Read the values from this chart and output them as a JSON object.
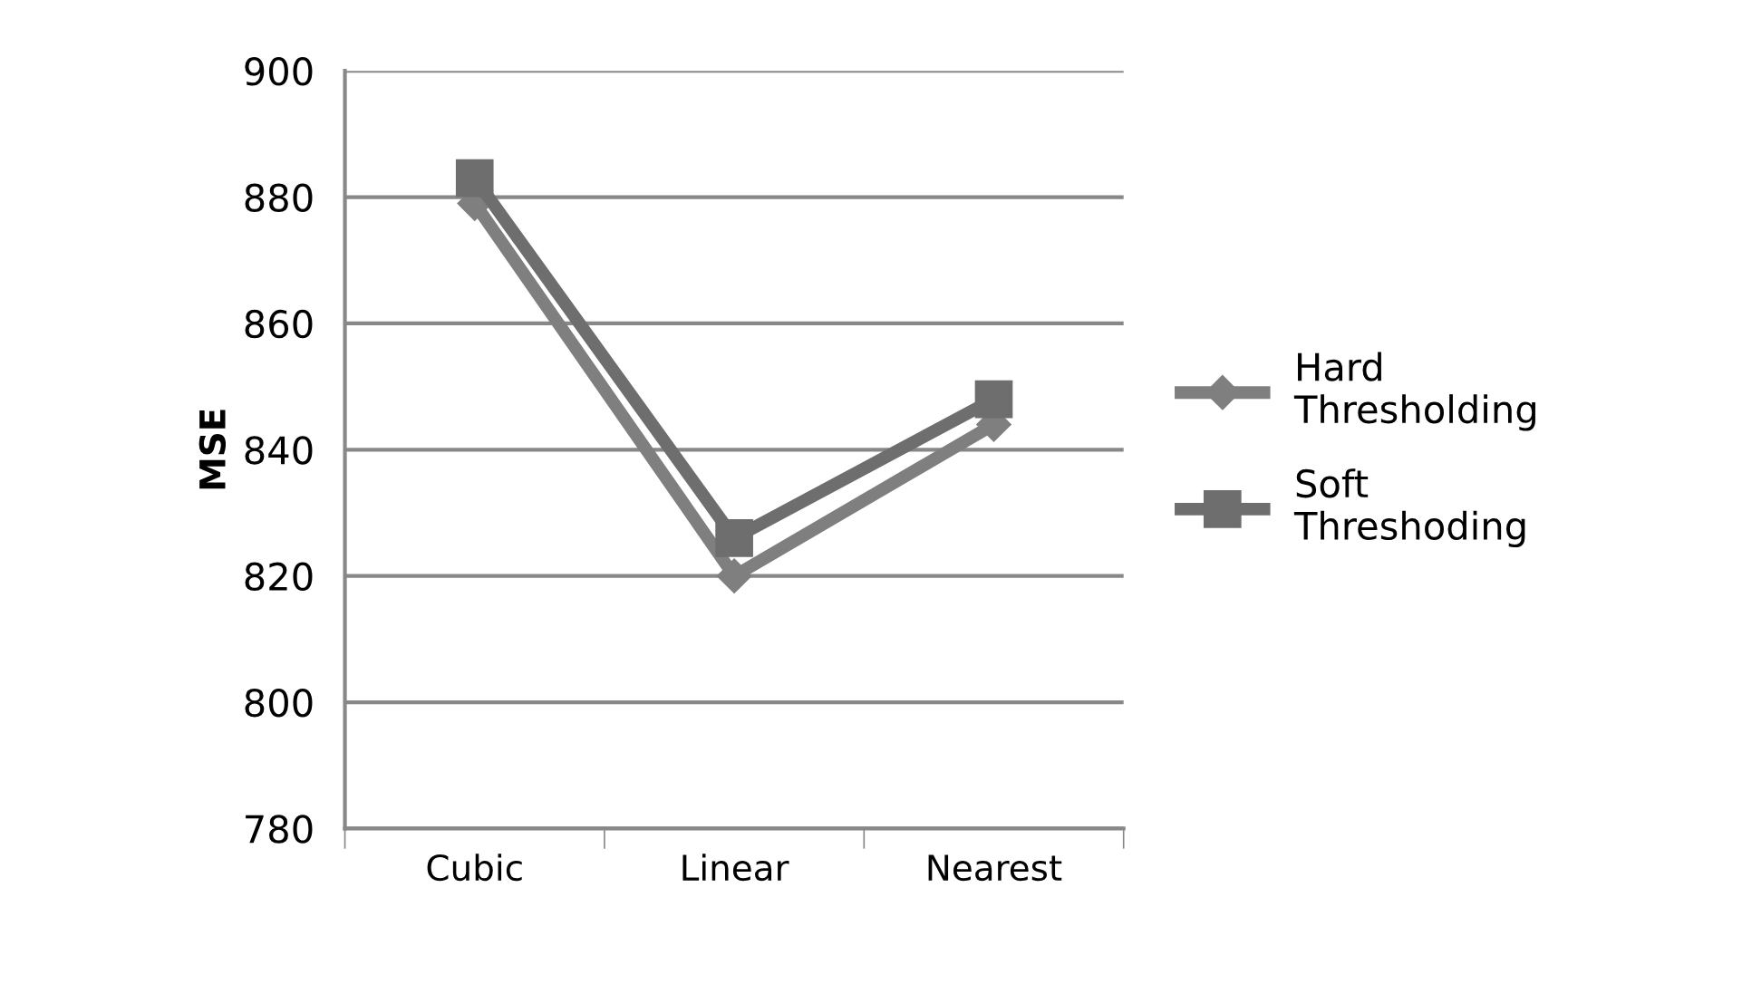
{
  "chart_data": {
    "type": "line",
    "ylabel": "MSE",
    "categories": [
      "Cubic",
      "Linear",
      "Nearest"
    ],
    "series": [
      {
        "name": "Hard\nThresholding",
        "color": "#7f7f7f",
        "marker": "diamond",
        "values": [
          879,
          820,
          844
        ]
      },
      {
        "name": "Soft\nThreshoding",
        "color": "#6e6e6e",
        "marker": "square",
        "values": [
          883,
          826,
          848
        ]
      }
    ],
    "ylim": [
      780,
      900
    ],
    "yticks": [
      780,
      800,
      820,
      840,
      860,
      880,
      900
    ],
    "grid": "y",
    "legend": "right",
    "line_style": "solid"
  }
}
